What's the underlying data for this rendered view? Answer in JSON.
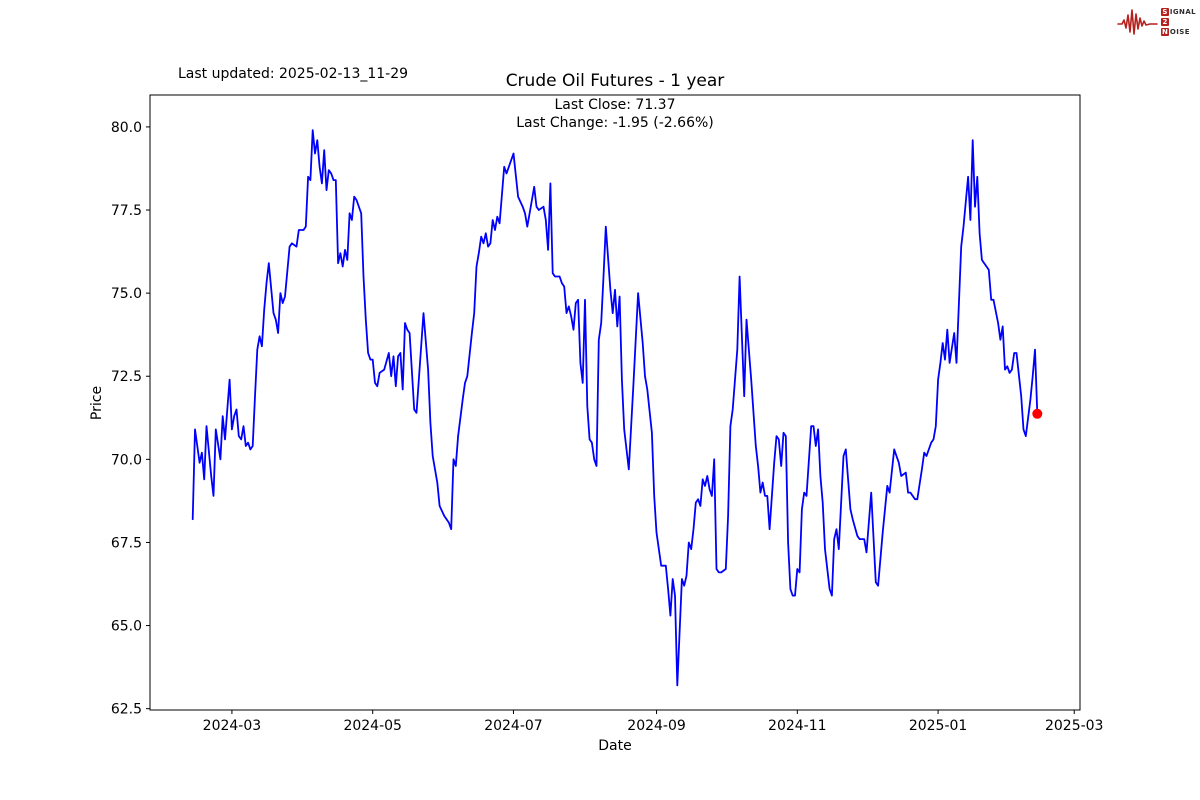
{
  "header": {
    "last_updated": "Last updated: 2025-02-13_11-29"
  },
  "logo": {
    "word1_first": "S",
    "word1_rest": "IGNAL",
    "word2": "2",
    "word3_first": "N",
    "word3_rest": "OISE",
    "accent_color": "#b5211f"
  },
  "chart_data": {
    "type": "line",
    "title": "Crude Oil Futures - 1 year",
    "subtitle_lines": [
      "Last Close: 71.37",
      "Last Change: -1.95 (-2.66%)"
    ],
    "xlabel": "Date",
    "ylabel": "Price",
    "last_close": 71.37,
    "last_change": -1.95,
    "last_change_pct": -2.66,
    "line_color": "#0000ff",
    "marker_color": "#ff0000",
    "axis_color": "#000000",
    "grid": false,
    "x_start_date": "2024-02-13",
    "x_end_date": "2025-02-13",
    "x_range_days": [
      -18.5,
      384.5
    ],
    "y_range": [
      62.46,
      80.96
    ],
    "x_ticks": [
      {
        "day": 17,
        "label": "2024-03"
      },
      {
        "day": 78,
        "label": "2024-05"
      },
      {
        "day": 139,
        "label": "2024-07"
      },
      {
        "day": 201,
        "label": "2024-09"
      },
      {
        "day": 262,
        "label": "2024-11"
      },
      {
        "day": 323,
        "label": "2025-01"
      },
      {
        "day": 382,
        "label": "2025-03"
      }
    ],
    "y_ticks": [
      {
        "value": 80.0,
        "label": "80.0"
      },
      {
        "value": 77.5,
        "label": "77.5"
      },
      {
        "value": 75.0,
        "label": "75.0"
      },
      {
        "value": 72.5,
        "label": "72.5"
      },
      {
        "value": 70.0,
        "label": "70.0"
      },
      {
        "value": 67.5,
        "label": "67.5"
      },
      {
        "value": 65.0,
        "label": "65.0"
      },
      {
        "value": 62.5,
        "label": "62.5"
      }
    ],
    "last_point": {
      "day": 366,
      "value": 71.37
    },
    "series": [
      {
        "name": "price",
        "points": [
          [
            0,
            68.2
          ],
          [
            1,
            70.9
          ],
          [
            3,
            69.9
          ],
          [
            4,
            70.2
          ],
          [
            5,
            69.4
          ],
          [
            6,
            71.0
          ],
          [
            8,
            69.5
          ],
          [
            9,
            68.9
          ],
          [
            10,
            70.9
          ],
          [
            12,
            70.0
          ],
          [
            13,
            71.3
          ],
          [
            14,
            70.6
          ],
          [
            16,
            72.4
          ],
          [
            17,
            70.9
          ],
          [
            18,
            71.3
          ],
          [
            19,
            71.5
          ],
          [
            20,
            70.7
          ],
          [
            21,
            70.6
          ],
          [
            22,
            71.0
          ],
          [
            23,
            70.4
          ],
          [
            24,
            70.5
          ],
          [
            25,
            70.3
          ],
          [
            26,
            70.4
          ],
          [
            27,
            71.9
          ],
          [
            28,
            73.3
          ],
          [
            29,
            73.7
          ],
          [
            30,
            73.4
          ],
          [
            31,
            74.5
          ],
          [
            32,
            75.3
          ],
          [
            33,
            75.9
          ],
          [
            35,
            74.4
          ],
          [
            36,
            74.2
          ],
          [
            37,
            73.8
          ],
          [
            38,
            75.0
          ],
          [
            39,
            74.7
          ],
          [
            40,
            74.9
          ],
          [
            42,
            76.4
          ],
          [
            43,
            76.5
          ],
          [
            45,
            76.4
          ],
          [
            46,
            76.9
          ],
          [
            48,
            76.9
          ],
          [
            49,
            77.0
          ],
          [
            50,
            78.5
          ],
          [
            51,
            78.4
          ],
          [
            52,
            79.9
          ],
          [
            53,
            79.2
          ],
          [
            54,
            79.6
          ],
          [
            55,
            78.8
          ],
          [
            56,
            78.3
          ],
          [
            57,
            79.3
          ],
          [
            58,
            78.1
          ],
          [
            59,
            78.7
          ],
          [
            60,
            78.6
          ],
          [
            61,
            78.4
          ],
          [
            62,
            78.4
          ],
          [
            63,
            75.9
          ],
          [
            64,
            76.2
          ],
          [
            65,
            75.8
          ],
          [
            66,
            76.3
          ],
          [
            67,
            76.0
          ],
          [
            68,
            77.4
          ],
          [
            69,
            77.2
          ],
          [
            70,
            77.9
          ],
          [
            71,
            77.8
          ],
          [
            73,
            77.4
          ],
          [
            74,
            75.5
          ],
          [
            75,
            74.2
          ],
          [
            76,
            73.2
          ],
          [
            77,
            73.0
          ],
          [
            78,
            73.0
          ],
          [
            79,
            72.3
          ],
          [
            80,
            72.2
          ],
          [
            81,
            72.6
          ],
          [
            83,
            72.7
          ],
          [
            85,
            73.2
          ],
          [
            86,
            72.5
          ],
          [
            87,
            73.1
          ],
          [
            88,
            72.2
          ],
          [
            89,
            73.1
          ],
          [
            90,
            73.2
          ],
          [
            91,
            72.1
          ],
          [
            92,
            74.1
          ],
          [
            93,
            73.9
          ],
          [
            94,
            73.8
          ],
          [
            96,
            71.5
          ],
          [
            97,
            71.4
          ],
          [
            100,
            74.4
          ],
          [
            102,
            72.7
          ],
          [
            103,
            71.1
          ],
          [
            104,
            70.1
          ],
          [
            106,
            69.3
          ],
          [
            107,
            68.6
          ],
          [
            109,
            68.3
          ],
          [
            111,
            68.1
          ],
          [
            112,
            67.9
          ],
          [
            113,
            70.0
          ],
          [
            114,
            69.8
          ],
          [
            115,
            70.7
          ],
          [
            117,
            71.8
          ],
          [
            118,
            72.3
          ],
          [
            119,
            72.5
          ],
          [
            121,
            73.8
          ],
          [
            122,
            74.4
          ],
          [
            123,
            75.8
          ],
          [
            124,
            76.2
          ],
          [
            125,
            76.7
          ],
          [
            126,
            76.5
          ],
          [
            127,
            76.8
          ],
          [
            128,
            76.4
          ],
          [
            129,
            76.5
          ],
          [
            130,
            77.2
          ],
          [
            131,
            76.9
          ],
          [
            132,
            77.3
          ],
          [
            133,
            77.1
          ],
          [
            135,
            78.8
          ],
          [
            136,
            78.6
          ],
          [
            139,
            79.2
          ],
          [
            141,
            77.9
          ],
          [
            143,
            77.6
          ],
          [
            144,
            77.4
          ],
          [
            145,
            77.0
          ],
          [
            148,
            78.2
          ],
          [
            149,
            77.6
          ],
          [
            150,
            77.5
          ],
          [
            152,
            77.6
          ],
          [
            153,
            77.2
          ],
          [
            154,
            76.3
          ],
          [
            155,
            78.3
          ],
          [
            156,
            75.6
          ],
          [
            157,
            75.5
          ],
          [
            159,
            75.5
          ],
          [
            160,
            75.3
          ],
          [
            161,
            75.2
          ],
          [
            162,
            74.4
          ],
          [
            163,
            74.6
          ],
          [
            164,
            74.3
          ],
          [
            165,
            73.9
          ],
          [
            166,
            74.7
          ],
          [
            167,
            74.8
          ],
          [
            168,
            72.9
          ],
          [
            169,
            72.3
          ],
          [
            170,
            74.8
          ],
          [
            171,
            71.6
          ],
          [
            172,
            70.6
          ],
          [
            173,
            70.5
          ],
          [
            174,
            70.0
          ],
          [
            175,
            69.8
          ],
          [
            176,
            73.6
          ],
          [
            177,
            74.1
          ],
          [
            178,
            75.5
          ],
          [
            179,
            77.0
          ],
          [
            181,
            75.1
          ],
          [
            182,
            74.4
          ],
          [
            183,
            75.1
          ],
          [
            184,
            74.0
          ],
          [
            185,
            74.9
          ],
          [
            186,
            72.4
          ],
          [
            187,
            70.9
          ],
          [
            189,
            69.7
          ],
          [
            191,
            72.3
          ],
          [
            193,
            75.0
          ],
          [
            195,
            73.5
          ],
          [
            196,
            72.5
          ],
          [
            197,
            72.1
          ],
          [
            199,
            70.8
          ],
          [
            200,
            68.9
          ],
          [
            201,
            67.8
          ],
          [
            203,
            66.8
          ],
          [
            205,
            66.8
          ],
          [
            206,
            66.1
          ],
          [
            207,
            65.3
          ],
          [
            208,
            66.4
          ],
          [
            209,
            65.9
          ],
          [
            210,
            63.2
          ],
          [
            212,
            66.4
          ],
          [
            213,
            66.2
          ],
          [
            214,
            66.5
          ],
          [
            215,
            67.5
          ],
          [
            216,
            67.3
          ],
          [
            217,
            67.9
          ],
          [
            218,
            68.7
          ],
          [
            219,
            68.8
          ],
          [
            220,
            68.6
          ],
          [
            221,
            69.4
          ],
          [
            222,
            69.2
          ],
          [
            223,
            69.5
          ],
          [
            224,
            69.1
          ],
          [
            225,
            68.9
          ],
          [
            226,
            70.0
          ],
          [
            227,
            66.7
          ],
          [
            228,
            66.6
          ],
          [
            229,
            66.6
          ],
          [
            231,
            66.7
          ],
          [
            232,
            68.3
          ],
          [
            233,
            71.0
          ],
          [
            234,
            71.5
          ],
          [
            235,
            72.4
          ],
          [
            236,
            73.3
          ],
          [
            237,
            75.5
          ],
          [
            239,
            71.9
          ],
          [
            240,
            74.2
          ],
          [
            242,
            72.4
          ],
          [
            243,
            71.4
          ],
          [
            244,
            70.4
          ],
          [
            245,
            69.8
          ],
          [
            246,
            69.0
          ],
          [
            247,
            69.3
          ],
          [
            248,
            68.9
          ],
          [
            249,
            68.9
          ],
          [
            250,
            67.9
          ],
          [
            252,
            69.9
          ],
          [
            253,
            70.7
          ],
          [
            254,
            70.6
          ],
          [
            255,
            69.8
          ],
          [
            256,
            70.8
          ],
          [
            257,
            70.7
          ],
          [
            258,
            67.5
          ],
          [
            259,
            66.1
          ],
          [
            260,
            65.9
          ],
          [
            261,
            65.9
          ],
          [
            262,
            66.7
          ],
          [
            263,
            66.6
          ],
          [
            264,
            68.5
          ],
          [
            265,
            69.0
          ],
          [
            266,
            68.9
          ],
          [
            268,
            71.0
          ],
          [
            269,
            71.0
          ],
          [
            270,
            70.4
          ],
          [
            271,
            70.9
          ],
          [
            272,
            69.5
          ],
          [
            273,
            68.7
          ],
          [
            274,
            67.3
          ],
          [
            276,
            66.1
          ],
          [
            277,
            65.9
          ],
          [
            278,
            67.6
          ],
          [
            279,
            67.9
          ],
          [
            280,
            67.3
          ],
          [
            282,
            70.1
          ],
          [
            283,
            70.3
          ],
          [
            284,
            69.4
          ],
          [
            285,
            68.5
          ],
          [
            286,
            68.2
          ],
          [
            288,
            67.7
          ],
          [
            289,
            67.6
          ],
          [
            291,
            67.6
          ],
          [
            292,
            67.2
          ],
          [
            294,
            69.0
          ],
          [
            296,
            66.3
          ],
          [
            297,
            66.2
          ],
          [
            299,
            67.8
          ],
          [
            301,
            69.2
          ],
          [
            302,
            69.0
          ],
          [
            304,
            70.3
          ],
          [
            306,
            69.9
          ],
          [
            307,
            69.5
          ],
          [
            309,
            69.6
          ],
          [
            310,
            69.0
          ],
          [
            311,
            69.0
          ],
          [
            313,
            68.8
          ],
          [
            314,
            68.8
          ],
          [
            316,
            69.7
          ],
          [
            317,
            70.2
          ],
          [
            318,
            70.1
          ],
          [
            320,
            70.5
          ],
          [
            321,
            70.6
          ],
          [
            322,
            71.0
          ],
          [
            323,
            72.4
          ],
          [
            324,
            72.9
          ],
          [
            325,
            73.5
          ],
          [
            326,
            73.0
          ],
          [
            327,
            73.9
          ],
          [
            328,
            72.9
          ],
          [
            330,
            73.8
          ],
          [
            331,
            72.9
          ],
          [
            333,
            76.4
          ],
          [
            334,
            77.0
          ],
          [
            336,
            78.5
          ],
          [
            337,
            77.2
          ],
          [
            338,
            79.6
          ],
          [
            339,
            77.6
          ],
          [
            340,
            78.5
          ],
          [
            341,
            76.8
          ],
          [
            342,
            76.0
          ],
          [
            345,
            75.7
          ],
          [
            346,
            74.8
          ],
          [
            347,
            74.8
          ],
          [
            349,
            74.1
          ],
          [
            350,
            73.6
          ],
          [
            351,
            74.0
          ],
          [
            352,
            72.7
          ],
          [
            353,
            72.8
          ],
          [
            354,
            72.6
          ],
          [
            355,
            72.7
          ],
          [
            356,
            73.2
          ],
          [
            357,
            73.2
          ],
          [
            359,
            71.9
          ],
          [
            360,
            70.9
          ],
          [
            361,
            70.7
          ],
          [
            363,
            71.8
          ],
          [
            364,
            72.5
          ],
          [
            365,
            73.3
          ],
          [
            366,
            71.37
          ]
        ]
      }
    ]
  }
}
